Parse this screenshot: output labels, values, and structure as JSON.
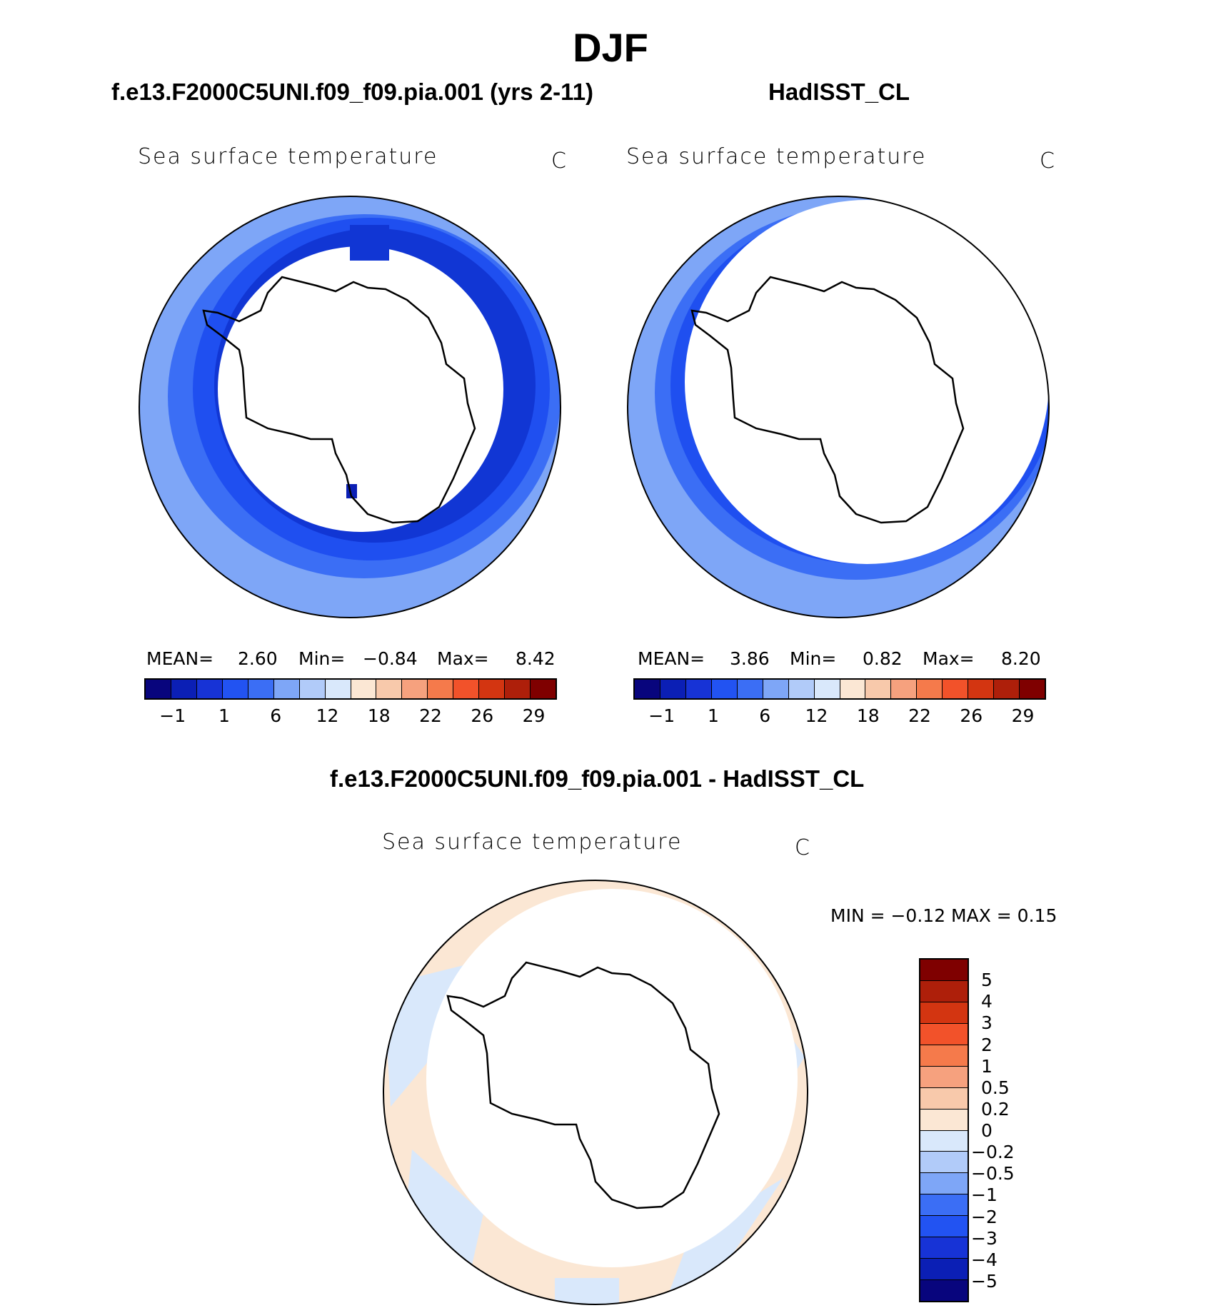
{
  "title": "DJF",
  "panels": [
    {
      "header": "f.e13.F2000C5UNI.f09_f09.pia.001 (yrs 2-11)",
      "variable": "Sea surface temperature",
      "units": "C",
      "stats": {
        "mean_label": "MEAN=",
        "mean": "2.60",
        "min_label": "Min=",
        "min": "−0.84",
        "max_label": "Max=",
        "max": "8.42"
      }
    },
    {
      "header": "HadISST_CL",
      "variable": "Sea surface temperature",
      "units": "C",
      "stats": {
        "mean_label": "MEAN=",
        "mean": "3.86",
        "min_label": "Min=",
        "min": "0.82",
        "max_label": "Max=",
        "max": "8.20"
      }
    }
  ],
  "diff_panel": {
    "header": "f.e13.F2000C5UNI.f09_f09.pia.001 - HadISST_CL",
    "variable": "Sea surface temperature",
    "units": "C",
    "minmax": "MIN =   −0.12 MAX =    0.15"
  },
  "sst_colorbar": {
    "colors": [
      "#08057d",
      "#0b1fb5",
      "#1733d6",
      "#2253f2",
      "#3b6ef5",
      "#7ea6f7",
      "#b1cbf9",
      "#d9e8fb",
      "#fbe7d4",
      "#f8c9ab",
      "#f6a17e",
      "#f57a4b",
      "#f2522a",
      "#d33511",
      "#ae1f0a",
      "#7f0000"
    ],
    "ticks": [
      "−1",
      "1",
      "6",
      "12",
      "18",
      "22",
      "26",
      "29"
    ]
  },
  "diff_colorbar": {
    "colors": [
      "#7f0000",
      "#ae1f0a",
      "#d33511",
      "#f2522a",
      "#f57a4b",
      "#f6a17e",
      "#f8c9ab",
      "#fbe7d4",
      "#d9e8fb",
      "#b1cbf9",
      "#7ea6f7",
      "#3b6ef5",
      "#2253f2",
      "#1733d6",
      "#0b1fb5",
      "#08057d"
    ],
    "ticks": [
      "5",
      "4",
      "3",
      "2",
      "1",
      "0.5",
      "0.2",
      "0",
      "−0.2",
      "−0.5",
      "−1",
      "−2",
      "−3",
      "−4",
      "−5"
    ]
  }
}
